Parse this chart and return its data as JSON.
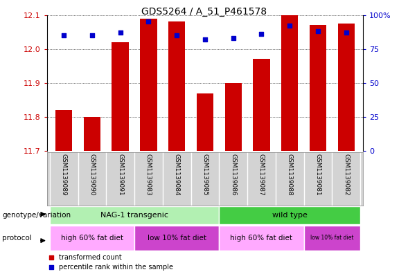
{
  "title": "GDS5264 / A_51_P461578",
  "samples": [
    "GSM1139089",
    "GSM1139090",
    "GSM1139091",
    "GSM1139083",
    "GSM1139084",
    "GSM1139085",
    "GSM1139086",
    "GSM1139087",
    "GSM1139088",
    "GSM1139081",
    "GSM1139082"
  ],
  "bar_values": [
    11.82,
    11.8,
    12.02,
    12.09,
    12.08,
    11.87,
    11.9,
    11.97,
    12.1,
    12.07,
    12.075
  ],
  "dot_values": [
    85,
    85,
    87,
    95,
    85,
    82,
    83,
    86,
    92,
    88,
    87
  ],
  "y_min": 11.7,
  "y_max": 12.1,
  "y_ticks": [
    11.7,
    11.8,
    11.9,
    12.0,
    12.1
  ],
  "y2_ticks": [
    0,
    25,
    50,
    75,
    100
  ],
  "bar_color": "#cc0000",
  "dot_color": "#0000cc",
  "plot_bg": "#ffffff",
  "grid_color": "#000000",
  "tick_bg": "#d3d3d3",
  "genotype_groups": [
    {
      "label": "NAG-1 transgenic",
      "start": 0,
      "end": 5,
      "color": "#b2f0b2"
    },
    {
      "label": "wild type",
      "start": 6,
      "end": 10,
      "color": "#44cc44"
    }
  ],
  "protocol_groups": [
    {
      "label": "high 60% fat diet",
      "start": 0,
      "end": 2,
      "color": "#ffaaff"
    },
    {
      "label": "low 10% fat diet",
      "start": 3,
      "end": 5,
      "color": "#cc44cc"
    },
    {
      "label": "high 60% fat diet",
      "start": 6,
      "end": 8,
      "color": "#ffaaff"
    },
    {
      "label": "low 10% fat diet",
      "start": 9,
      "end": 10,
      "color": "#cc44cc"
    }
  ],
  "legend_items": [
    {
      "label": "transformed count",
      "color": "#cc0000"
    },
    {
      "label": "percentile rank within the sample",
      "color": "#0000cc"
    }
  ],
  "tick_label_color_left": "#cc0000",
  "tick_label_color_right": "#0000cc",
  "figsize": [
    5.89,
    3.93
  ],
  "dpi": 100
}
